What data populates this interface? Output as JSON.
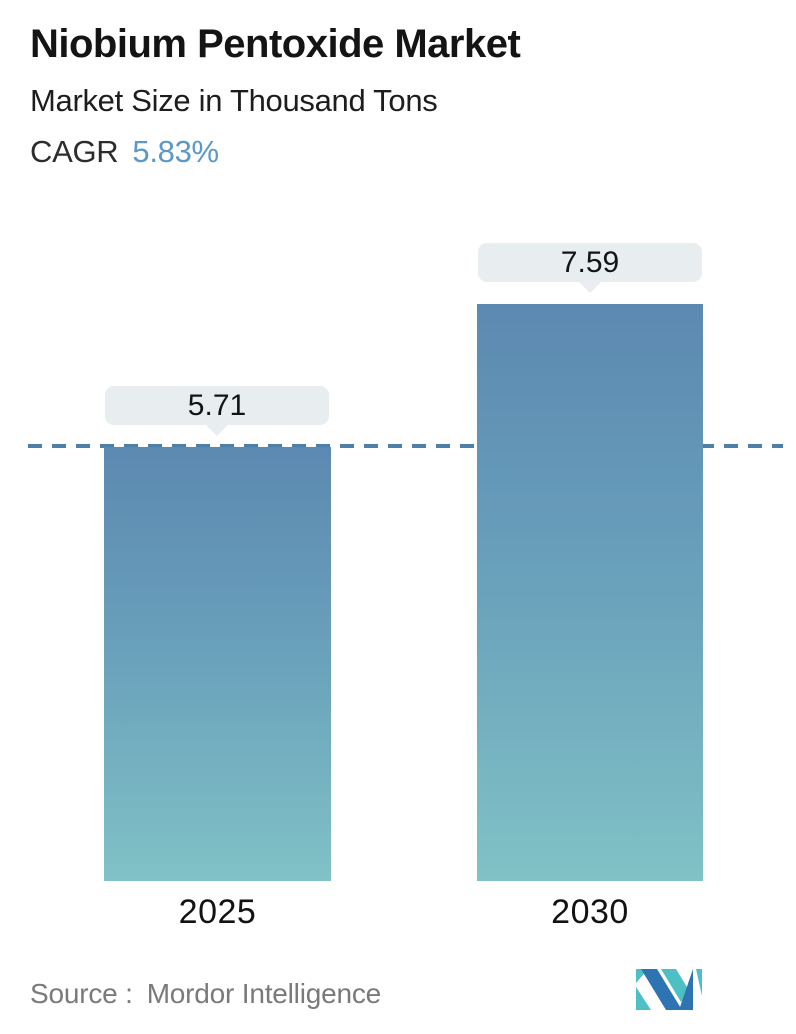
{
  "header": {
    "title": "Niobium Pentoxide Market",
    "subtitle": "Market Size in Thousand Tons",
    "cagr_label": "CAGR",
    "cagr_value": "5.83%"
  },
  "chart_data": {
    "type": "bar",
    "categories": [
      "2025",
      "2030"
    ],
    "values": [
      5.71,
      7.59
    ],
    "value_labels": [
      "5.71",
      "7.59"
    ],
    "series_name": "Market Size (Thousand Tons)",
    "title": "Niobium Pentoxide Market",
    "subtitle": "Market Size in Thousand Tons",
    "cagr": "5.83%",
    "annotations": [
      "dashed horizontal reference line at the 2025 level (5.71)"
    ],
    "grid": "off",
    "legend": "none",
    "axis_labels_visible": false,
    "bar_gradient_top": "#5c89b1",
    "bar_gradient_bottom": "#80c2c6",
    "baseline_color": "#4e7fa8",
    "callout_bg": "#e8eef0"
  },
  "footer": {
    "source_label": "Source :",
    "source_value": "Mordor Intelligence",
    "logo_name": "mordor-intelligence-logo"
  },
  "colors": {
    "title": "#141414",
    "cagr_value": "#5b98c9",
    "source_text": "#7a7a7a",
    "logo_blue": "#2e73b2",
    "logo_teal": "#4cc0c4"
  }
}
